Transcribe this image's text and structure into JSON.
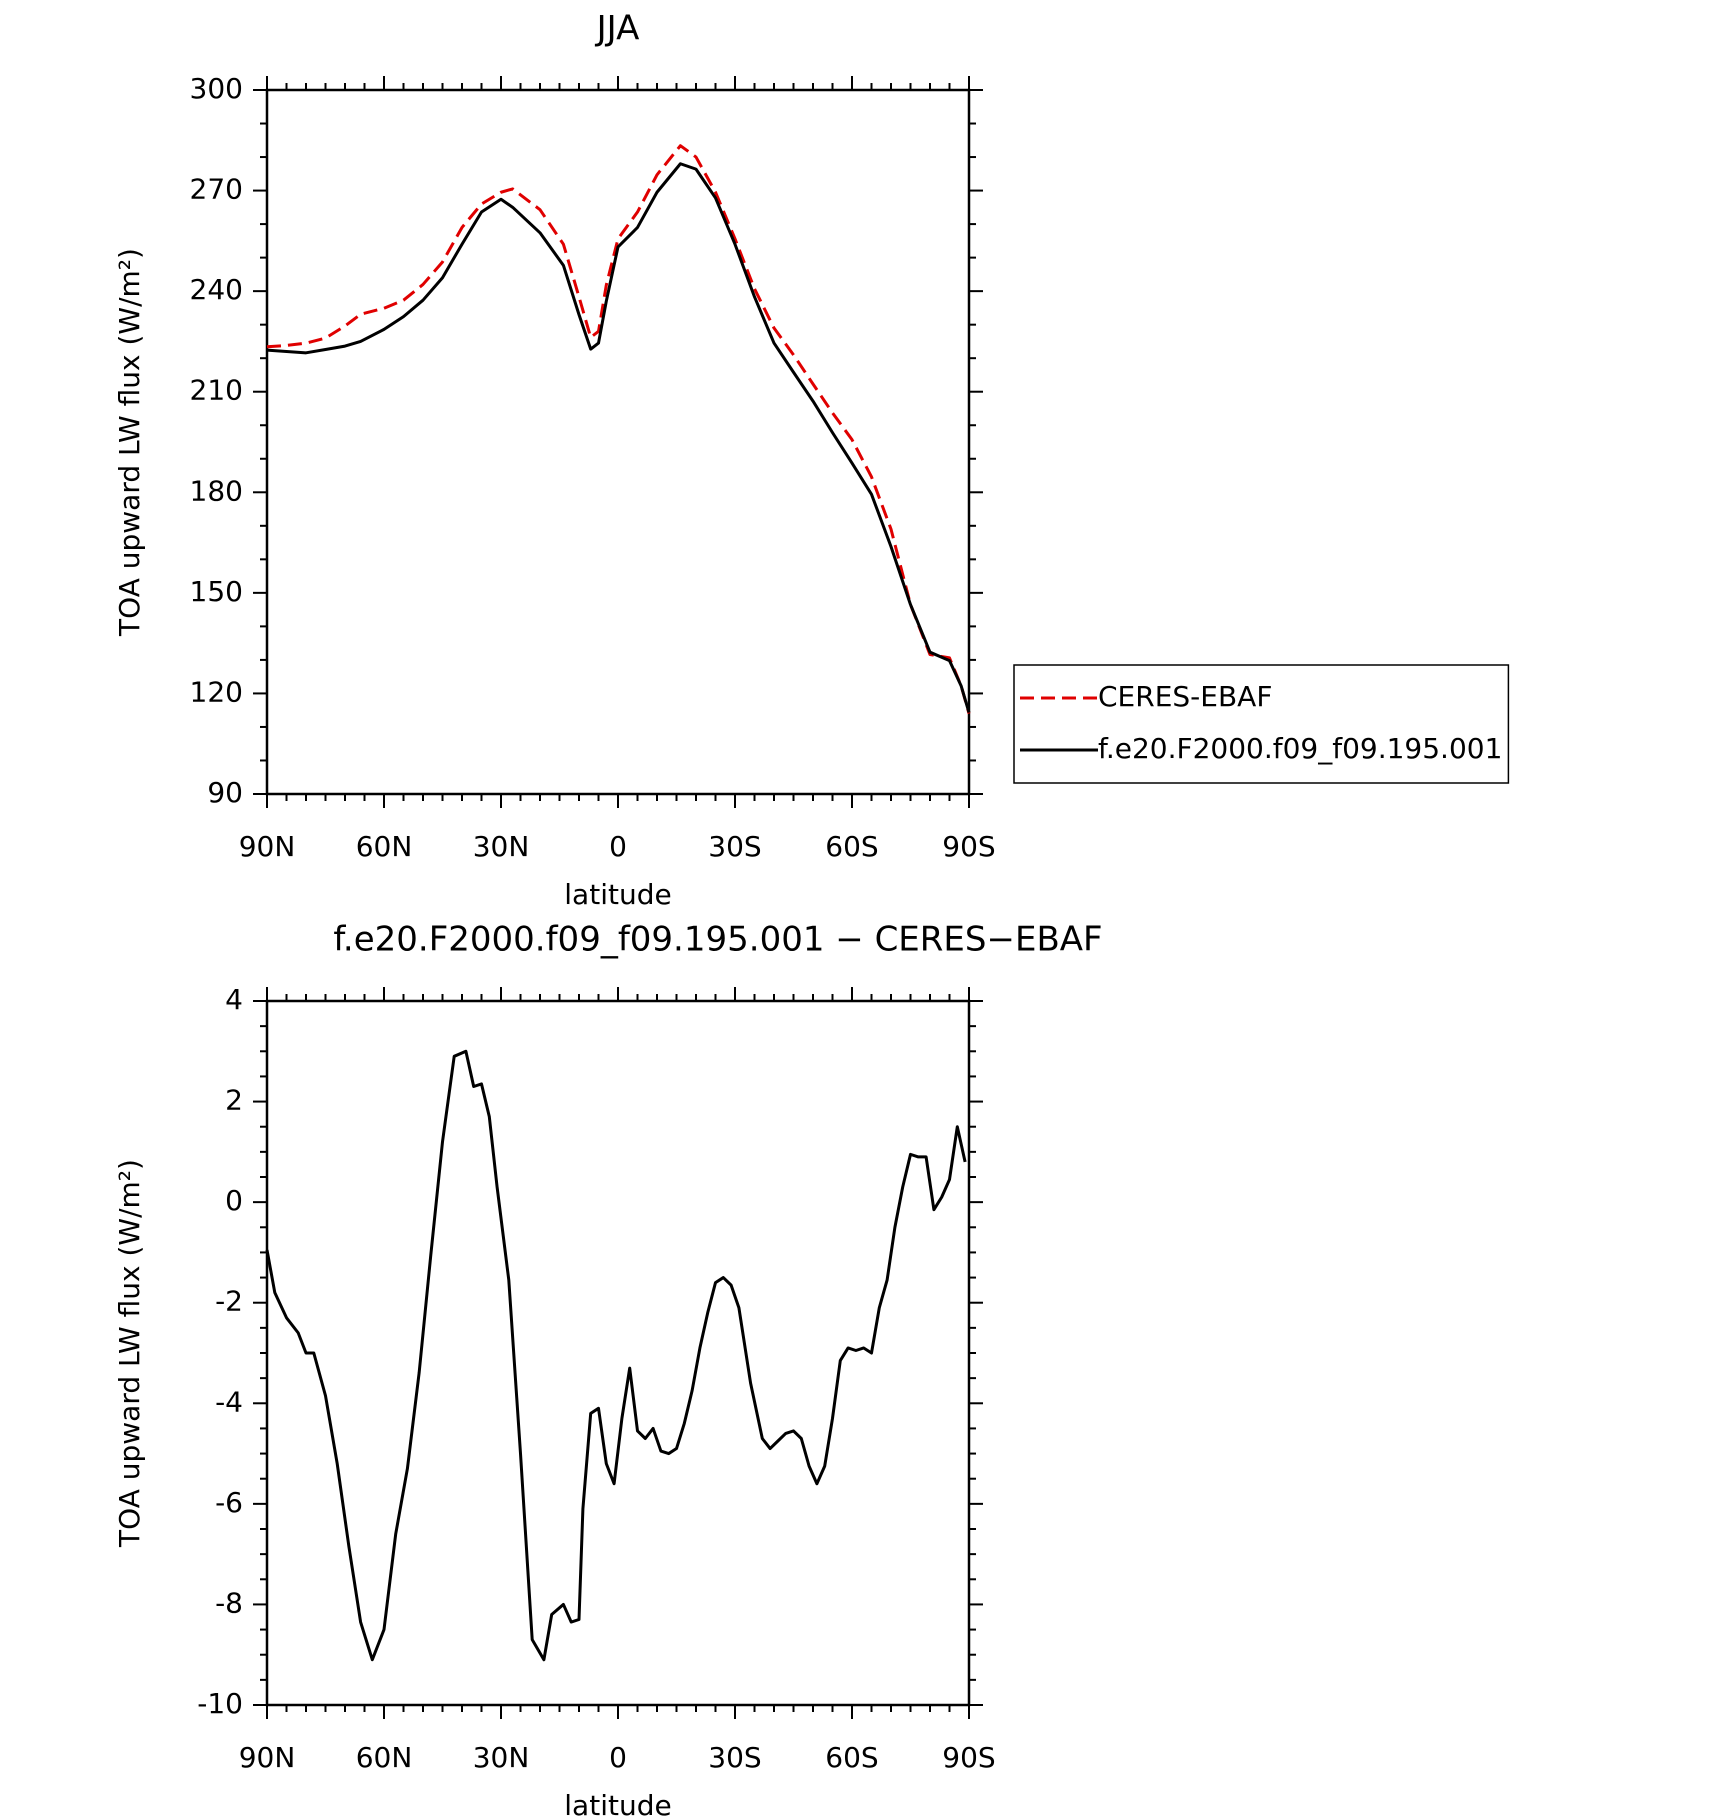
{
  "chart_data": [
    {
      "type": "line",
      "title": "JJA",
      "x_label": "latitude",
      "y_label": "TOA upward LW flux (W/m²)",
      "x": [
        90,
        85,
        80,
        75,
        70,
        66,
        60,
        55,
        50,
        45,
        40,
        35,
        30,
        27,
        20,
        14,
        10,
        7,
        5,
        3,
        0,
        -5,
        -10,
        -16,
        -20,
        -25,
        -30,
        -35,
        -40,
        -45,
        -50,
        -55,
        -60,
        -65,
        -70,
        -75,
        -80,
        -85,
        -88,
        -90
      ],
      "series": [
        {
          "name": "CERES-EBAF",
          "color": "#e00000",
          "dash": true,
          "values": [
            223.4,
            223.8,
            224.5,
            226,
            229.6,
            233.1,
            234.9,
            237.3,
            242,
            248.7,
            259,
            266,
            269.5,
            270.5,
            264.3,
            254,
            238.3,
            226.2,
            228,
            241.8,
            255.6,
            263.6,
            274.7,
            283.4,
            280,
            269.5,
            255.6,
            240.7,
            229,
            221,
            212.3,
            203.7,
            195.7,
            184.6,
            169,
            146.5,
            131.6,
            130.6,
            122.2,
            114
          ]
        },
        {
          "name": "f.e20.F2000.f09_f09.195.001",
          "color": "#000000",
          "dash": false,
          "values": [
            222.4,
            222,
            221.6,
            222.6,
            223.6,
            225,
            228.6,
            232.4,
            237.3,
            244,
            254,
            263.6,
            267.4,
            265,
            257.4,
            247.7,
            233,
            222.7,
            224.5,
            237,
            253.2,
            259,
            269.5,
            278,
            276.4,
            267.8,
            254,
            238.3,
            224.5,
            215.8,
            207.2,
            197.8,
            188.7,
            179.4,
            163.8,
            146.5,
            132.3,
            129.8,
            122.2,
            114.3
          ]
        }
      ],
      "xlim": [
        90,
        -90
      ],
      "xticks": [
        {
          "value": 90,
          "label": "90N"
        },
        {
          "value": 60,
          "label": "60N"
        },
        {
          "value": 30,
          "label": "30N"
        },
        0,
        {
          "value": -30,
          "label": "30S"
        },
        {
          "value": -60,
          "label": "60S"
        },
        {
          "value": -90,
          "label": "90S"
        }
      ],
      "ylim": [
        90,
        300
      ],
      "yticks": [
        90,
        120,
        150,
        180,
        210,
        240,
        270,
        300
      ],
      "legend": "right"
    },
    {
      "type": "line",
      "title": "f.e20.F2000.f09_f09.195.001 − CERES−EBAF",
      "x_label": "latitude",
      "y_label": "TOA upward LW flux (W/m²)",
      "x": [
        90,
        88,
        85,
        82,
        80,
        78,
        75,
        72,
        69,
        66,
        63,
        60,
        57,
        54,
        51,
        48,
        45,
        42,
        39,
        37,
        35,
        33,
        31,
        28,
        25,
        22,
        19,
        17,
        14,
        12,
        10,
        9,
        7,
        5,
        3,
        1,
        -1,
        -3,
        -5,
        -7,
        -9,
        -11,
        -13,
        -15,
        -17,
        -19,
        -21,
        -23,
        -25,
        -27,
        -29,
        -31,
        -34,
        -37,
        -39,
        -41,
        -43,
        -45,
        -47,
        -49,
        -51,
        -53,
        -55,
        -57,
        -59,
        -61,
        -63,
        -65,
        -67,
        -69,
        -71,
        -73,
        -75,
        -77,
        -79,
        -81,
        -83,
        -85,
        -87,
        -89
      ],
      "series": [
        {
          "color": "#000000",
          "dash": false,
          "values": [
            -0.95,
            -1.8,
            -2.3,
            -2.6,
            -3,
            -3,
            -3.85,
            -5.2,
            -6.85,
            -8.35,
            -9.1,
            -8.5,
            -6.6,
            -5.3,
            -3.4,
            -1.05,
            1.2,
            2.9,
            3.0,
            2.3,
            2.35,
            1.7,
            0.3,
            -1.55,
            -5,
            -8.7,
            -9.1,
            -8.2,
            -8,
            -8.35,
            -8.3,
            -6.1,
            -4.2,
            -4.1,
            -5.2,
            -5.6,
            -4.3,
            -3.3,
            -4.55,
            -4.7,
            -4.5,
            -4.95,
            -5,
            -4.9,
            -4.4,
            -3.75,
            -2.9,
            -2.2,
            -1.6,
            -1.5,
            -1.65,
            -2.1,
            -3.6,
            -4.7,
            -4.9,
            -4.75,
            -4.6,
            -4.55,
            -4.7,
            -5.25,
            -5.6,
            -5.25,
            -4.3,
            -3.15,
            -2.9,
            -2.95,
            -2.9,
            -3,
            -2.1,
            -1.55,
            -0.5,
            0.3,
            0.95,
            0.9,
            0.9,
            -0.15,
            0.1,
            0.45,
            1.5,
            0.8
          ]
        }
      ],
      "xlim": [
        90,
        -90
      ],
      "xticks": [
        {
          "value": 90,
          "label": "90N"
        },
        {
          "value": 60,
          "label": "60N"
        },
        {
          "value": 30,
          "label": "30N"
        },
        0,
        {
          "value": -30,
          "label": "30S"
        },
        {
          "value": -60,
          "label": "60S"
        },
        {
          "value": -90,
          "label": "90S"
        }
      ],
      "ylim": [
        -10,
        4
      ],
      "yticks": [
        -10,
        -8,
        -6,
        -4,
        -2,
        0,
        2,
        4
      ]
    }
  ]
}
